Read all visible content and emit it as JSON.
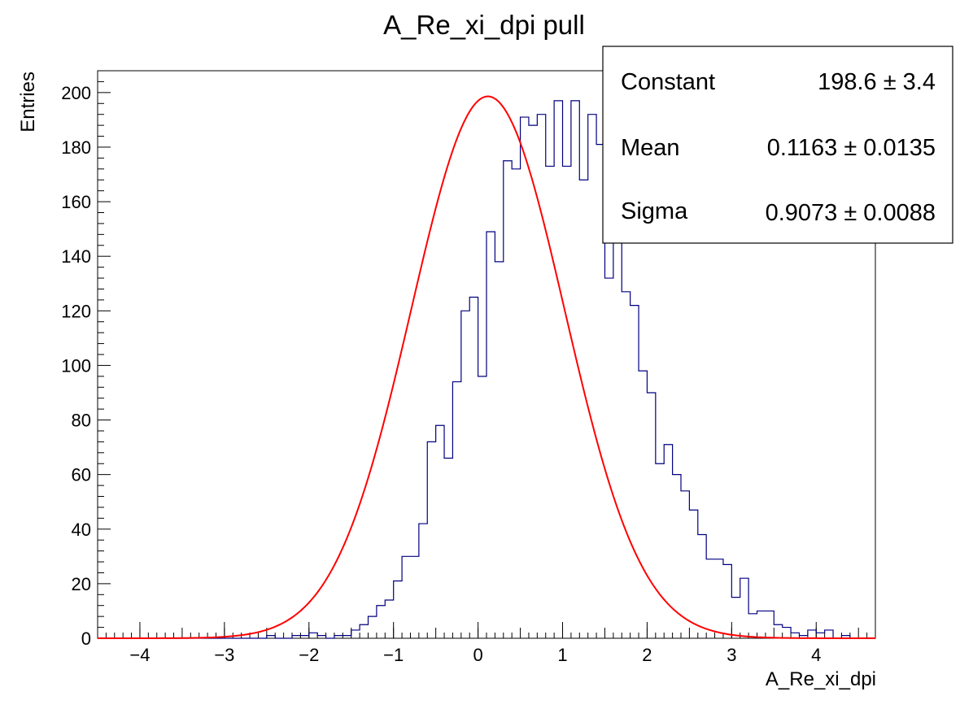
{
  "chart_data": {
    "type": "bar",
    "title": "A_Re_xi_dpi pull",
    "xlabel": "A_Re_xi_dpi",
    "ylabel": "Entries",
    "xlim": [
      -4.5,
      4.7
    ],
    "ylim": [
      0,
      208
    ],
    "x_ticks": [
      "−4",
      "−3",
      "−2",
      "−1",
      "0",
      "1",
      "2",
      "3",
      "4"
    ],
    "x_tick_values": [
      -4,
      -3,
      -2,
      -1,
      0,
      1,
      2,
      3,
      4
    ],
    "y_ticks": [
      "0",
      "20",
      "40",
      "60",
      "80",
      "100",
      "120",
      "140",
      "160",
      "180",
      "200"
    ],
    "y_tick_values": [
      0,
      20,
      40,
      60,
      80,
      100,
      120,
      140,
      160,
      180,
      200
    ],
    "grid": false,
    "histogram": {
      "name": "",
      "color": "#000080",
      "bin_low": -4.5,
      "bin_width": 0.1,
      "counts": [
        0,
        0,
        0,
        0,
        0,
        0,
        0,
        0,
        0,
        0,
        0,
        0,
        0,
        0,
        0,
        0,
        0,
        0,
        0,
        0,
        1,
        0,
        0,
        1,
        1,
        2,
        1,
        0,
        1,
        1,
        3,
        5,
        8,
        12,
        14,
        21,
        30,
        30,
        42,
        72,
        78,
        66,
        94,
        120,
        125,
        96,
        149,
        138,
        175,
        172,
        191,
        188,
        192,
        173,
        197,
        173,
        197,
        168,
        192,
        181,
        132,
        148,
        127,
        122,
        98,
        90,
        64,
        71,
        60,
        54,
        47,
        38,
        29,
        29,
        27,
        15,
        22,
        9,
        10,
        10,
        5,
        4,
        2,
        1,
        3,
        2,
        3,
        0,
        1,
        0,
        0,
        0
      ]
    },
    "fit": {
      "name": "",
      "type": "gaussian",
      "color": "#ff0000",
      "constant": 198.6,
      "mean": 0.1163,
      "sigma": 0.9073
    },
    "stats_box": {
      "placement": "top-right",
      "rows": [
        {
          "label": "Constant",
          "value": "198.6 ± 3.4"
        },
        {
          "label": "Mean",
          "value": "0.1163 ± 0.0135"
        },
        {
          "label": "Sigma",
          "value": "0.9073 ± 0.0088"
        }
      ]
    }
  }
}
